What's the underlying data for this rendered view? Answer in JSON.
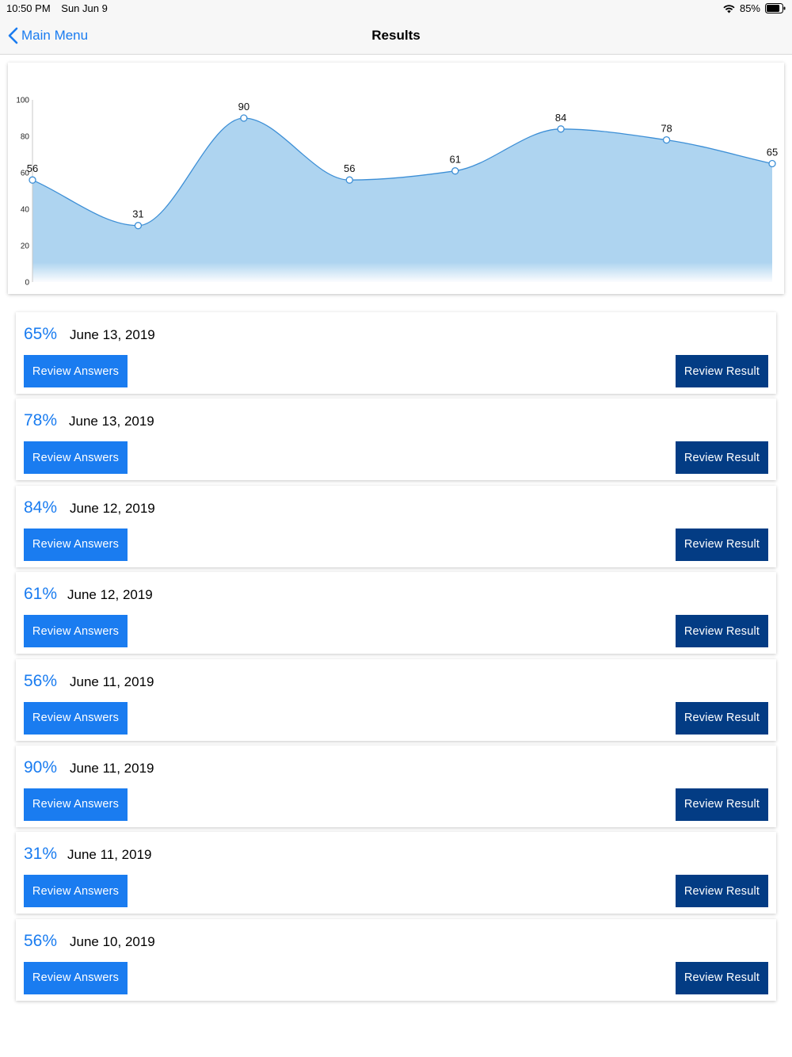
{
  "status_bar": {
    "time": "10:50 PM",
    "date": "Sun Jun 9",
    "battery": "85%",
    "battery_level": 0.85
  },
  "nav": {
    "back_label": "Main Menu",
    "title": "Results"
  },
  "chart_data": {
    "type": "area",
    "x": [
      1,
      2,
      3,
      4,
      5,
      6,
      7,
      8
    ],
    "values": [
      56,
      31,
      90,
      56,
      61,
      84,
      78,
      65
    ],
    "data_labels": [
      "56",
      "31",
      "90",
      "56",
      "61",
      "84",
      "78",
      "65"
    ],
    "ylim": [
      0,
      100
    ],
    "yticks": [
      "0",
      "20",
      "40",
      "60",
      "80",
      "100"
    ],
    "grid": false,
    "legend": "none",
    "title": "",
    "xlabel": "",
    "ylabel": "",
    "color": "#aed4f0",
    "line_color": "#3d8fd6"
  },
  "results": [
    {
      "score": "65%",
      "date": "June 13, 2019",
      "answers_label": "Review Answers",
      "result_label": "Review Result"
    },
    {
      "score": "78%",
      "date": "June 13, 2019",
      "answers_label": "Review Answers",
      "result_label": "Review Result"
    },
    {
      "score": "84%",
      "date": "June 12, 2019",
      "answers_label": "Review Answers",
      "result_label": "Review Result"
    },
    {
      "score": "61%",
      "date": "June 12, 2019",
      "answers_label": "Review Answers",
      "result_label": "Review Result"
    },
    {
      "score": "56%",
      "date": "June 11, 2019",
      "answers_label": "Review Answers",
      "result_label": "Review Result"
    },
    {
      "score": "90%",
      "date": "June 11, 2019",
      "answers_label": "Review Answers",
      "result_label": "Review Result"
    },
    {
      "score": "31%",
      "date": "June 11, 2019",
      "answers_label": "Review Answers",
      "result_label": "Review Result"
    },
    {
      "score": "56%",
      "date": "June 10, 2019",
      "answers_label": "Review Answers",
      "result_label": "Review Result"
    }
  ],
  "colors": {
    "accent": "#1a7cf0",
    "dark_button": "#033c84"
  }
}
